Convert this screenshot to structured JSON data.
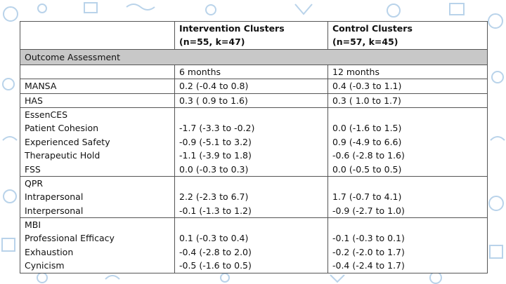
{
  "header": {
    "intervention": {
      "title": "Intervention Clusters",
      "subtitle": "(n=55, k=47)"
    },
    "control": {
      "title": "Control Clusters",
      "subtitle": "(n=57, k=45)"
    }
  },
  "section_label": "Outcome Assessment",
  "timepoints": {
    "intervention": "6 months",
    "control": "12 months"
  },
  "groups": [
    {
      "lines": [
        {
          "label": "MANSA",
          "intervention": "0.2 (-0.4 to 0.8)",
          "control": "0.4 (-0.3 to 1.1)"
        }
      ]
    },
    {
      "lines": [
        {
          "label": "HAS",
          "intervention": "0.3 ( 0.9 to 1.6)",
          "control": "0.3 ( 1.0 to 1.7)"
        }
      ]
    },
    {
      "lines": [
        {
          "label": "EssenCES"
        },
        {
          "label": "Patient Cohesion",
          "intervention": "-1.7 (-3.3 to -0.2)",
          "control": "0.0 (-1.6 to 1.5)"
        },
        {
          "label": "Experienced Safety",
          "intervention": "-0.9 (-5.1 to 3.2)",
          "control": "0.9 (-4.9 to 6.6)"
        },
        {
          "label": "Therapeutic Hold",
          "intervention": "-1.1 (-3.9 to 1.8)",
          "control": "-0.6 (-2.8 to 1.6)"
        },
        {
          "label": "FSS",
          "intervention": "0.0 (-0.3 to 0.3)",
          "control": "0.0 (-0.5 to 0.5)"
        }
      ]
    },
    {
      "lines": [
        {
          "label": "QPR"
        },
        {
          "label": "Intrapersonal",
          "intervention": "2.2 (-2.3 to 6.7)",
          "control": "1.7 (-0.7 to 4.1)"
        },
        {
          "label": "Interpersonal",
          "intervention": "-0.1 (-1.3 to 1.2)",
          "control": "-0.9 (-2.7 to 1.0)"
        }
      ]
    },
    {
      "lines": [
        {
          "label": "MBI"
        },
        {
          "label": "Professional Efficacy",
          "intervention": "0.1 (-0.3 to 0.4)",
          "control": "-0.1 (-0.3 to 0.1)"
        },
        {
          "label": "Exhaustion",
          "intervention": "-0.4 (-2.8 to 2.0)",
          "control": "-0.2 (-2.0 to 1.7)"
        },
        {
          "label": "Cynicism",
          "intervention": "-0.5 (-1.6 to 0.5)",
          "control": "-0.4 (-2.4 to 1.7)"
        }
      ]
    }
  ]
}
